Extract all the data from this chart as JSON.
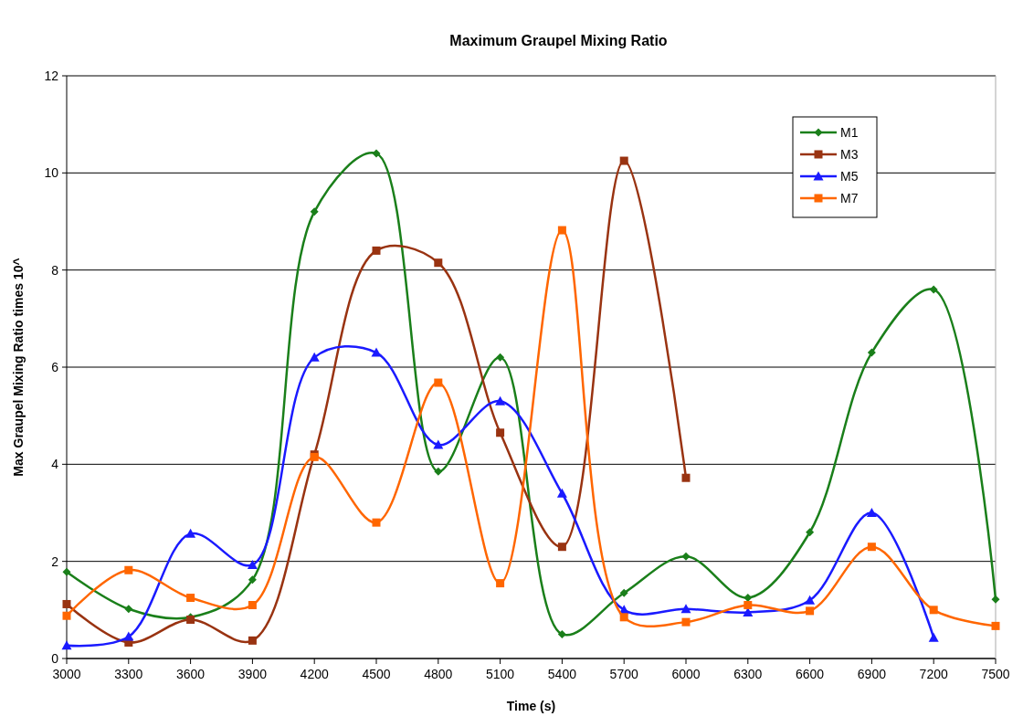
{
  "chart_data": {
    "type": "line",
    "title": "Maximum Graupel Mixing Ratio",
    "xlabel": "Time (s)",
    "ylabel": "Max Graupel Mixing Ratio times 10^",
    "x": [
      3000,
      3300,
      3600,
      3900,
      4200,
      4500,
      4800,
      5100,
      5400,
      5700,
      6000,
      6300,
      6600,
      6900,
      7200,
      7500
    ],
    "xlim": [
      3000,
      7500
    ],
    "xticks": [
      3000,
      3300,
      3600,
      3900,
      4200,
      4500,
      4800,
      5100,
      5400,
      5700,
      6000,
      6300,
      6600,
      6900,
      7200,
      7500
    ],
    "ylim": [
      0,
      12
    ],
    "yticks": [
      0,
      2,
      4,
      6,
      8,
      10,
      12
    ],
    "grid": "y",
    "legend": "top right",
    "line_style": "solid",
    "series": [
      {
        "name": "M1",
        "color": "#1a7f1a",
        "marker": "diamond",
        "values": [
          1.78,
          1.02,
          0.85,
          1.62,
          9.2,
          10.4,
          3.85,
          6.2,
          0.5,
          1.35,
          2.1,
          1.25,
          2.6,
          6.3,
          7.6,
          1.22
        ]
      },
      {
        "name": "M3",
        "color": "#993311",
        "marker": "square",
        "values": [
          1.12,
          0.33,
          0.8,
          0.37,
          4.2,
          8.4,
          8.15,
          4.65,
          2.3,
          10.25,
          3.72,
          null,
          null,
          null,
          null,
          null
        ]
      },
      {
        "name": "M5",
        "color": "#1a1aff",
        "marker": "triangle",
        "values": [
          0.27,
          0.45,
          2.57,
          1.93,
          6.2,
          6.3,
          4.4,
          5.3,
          3.4,
          1.0,
          1.02,
          0.95,
          1.2,
          3.0,
          0.43,
          null
        ]
      },
      {
        "name": "M7",
        "color": "#ff6600",
        "marker": "square",
        "values": [
          0.88,
          1.82,
          1.25,
          1.1,
          4.15,
          2.8,
          5.68,
          1.55,
          8.82,
          0.85,
          0.75,
          1.1,
          0.98,
          2.3,
          1.0,
          0.67
        ]
      }
    ]
  }
}
